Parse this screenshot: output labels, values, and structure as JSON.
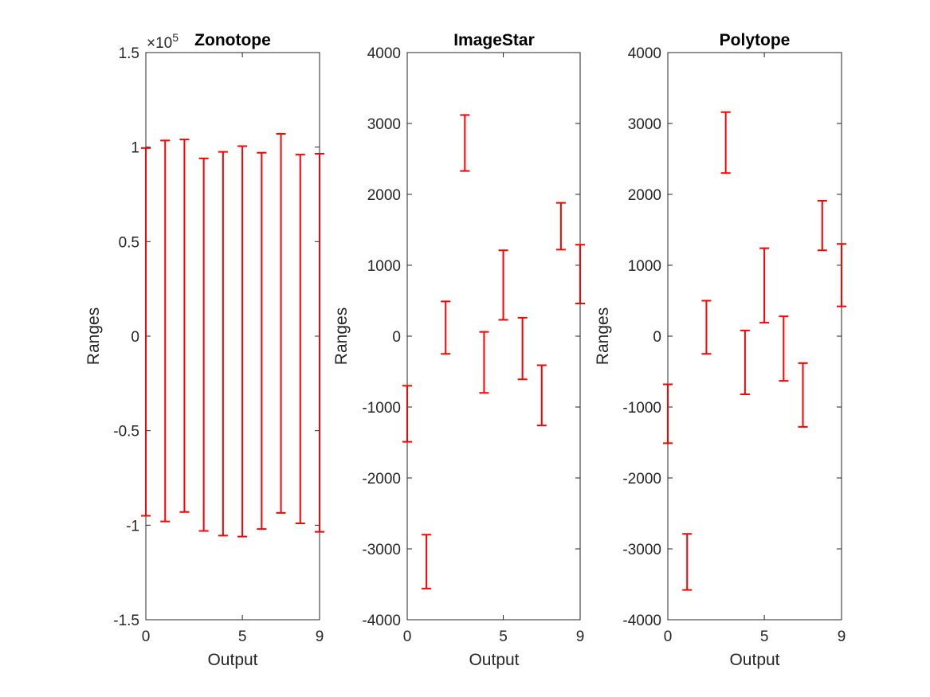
{
  "chart_data": [
    {
      "type": "errorbar",
      "title": "Zonotope",
      "xlabel": "Output",
      "ylabel": "Ranges",
      "exponent_label": "×10",
      "exponent_power": "5",
      "xlim": [
        0,
        9
      ],
      "ylim": [
        -1.5,
        1.5
      ],
      "xticks": [
        0,
        5,
        9
      ],
      "yticks": [
        -1.5,
        -1,
        -0.5,
        0,
        0.5,
        1,
        1.5
      ],
      "ytick_labels": [
        "-1.5",
        "-1",
        "-0.5",
        "0",
        "0.5",
        "1",
        "1.5"
      ],
      "color": "#ff0000",
      "grid": false,
      "x": [
        0,
        1,
        2,
        3,
        4,
        5,
        6,
        7,
        8,
        9
      ],
      "lower": [
        -0.95,
        -0.98,
        -0.93,
        -1.03,
        -1.055,
        -1.06,
        -1.02,
        -0.935,
        -0.99,
        -1.035
      ],
      "upper": [
        0.995,
        1.035,
        1.04,
        0.94,
        0.975,
        1.005,
        0.97,
        1.07,
        0.96,
        0.965
      ]
    },
    {
      "type": "errorbar",
      "title": "ImageStar",
      "xlabel": "Output",
      "ylabel": "Ranges",
      "xlim": [
        0,
        9
      ],
      "ylim": [
        -4000,
        4000
      ],
      "xticks": [
        0,
        5,
        9
      ],
      "yticks": [
        -4000,
        -3000,
        -2000,
        -1000,
        0,
        1000,
        2000,
        3000,
        4000
      ],
      "ytick_labels": [
        "-4000",
        "-3000",
        "-2000",
        "-1000",
        "0",
        "1000",
        "2000",
        "3000",
        "4000"
      ],
      "color": "#ff0000",
      "grid": false,
      "x": [
        0,
        1,
        2,
        3,
        4,
        5,
        6,
        7,
        8,
        9
      ],
      "lower": [
        -1490,
        -3560,
        -250,
        2330,
        -800,
        230,
        -610,
        -1260,
        1220,
        460
      ],
      "upper": [
        -700,
        -2800,
        490,
        3120,
        60,
        1210,
        260,
        -410,
        1880,
        1290
      ]
    },
    {
      "type": "errorbar",
      "title": "Polytope",
      "xlabel": "Output",
      "ylabel": "Ranges",
      "xlim": [
        0,
        9
      ],
      "ylim": [
        -4000,
        4000
      ],
      "xticks": [
        0,
        5,
        9
      ],
      "yticks": [
        -4000,
        -3000,
        -2000,
        -1000,
        0,
        1000,
        2000,
        3000,
        4000
      ],
      "ytick_labels": [
        "-4000",
        "-3000",
        "-2000",
        "-1000",
        "0",
        "1000",
        "2000",
        "3000",
        "4000"
      ],
      "color": "#ff0000",
      "grid": false,
      "x": [
        0,
        1,
        2,
        3,
        4,
        5,
        6,
        7,
        8,
        9
      ],
      "lower": [
        -1510,
        -3580,
        -250,
        2300,
        -820,
        190,
        -630,
        -1280,
        1210,
        420
      ],
      "upper": [
        -680,
        -2790,
        500,
        3160,
        80,
        1240,
        280,
        -380,
        1910,
        1300
      ]
    }
  ]
}
